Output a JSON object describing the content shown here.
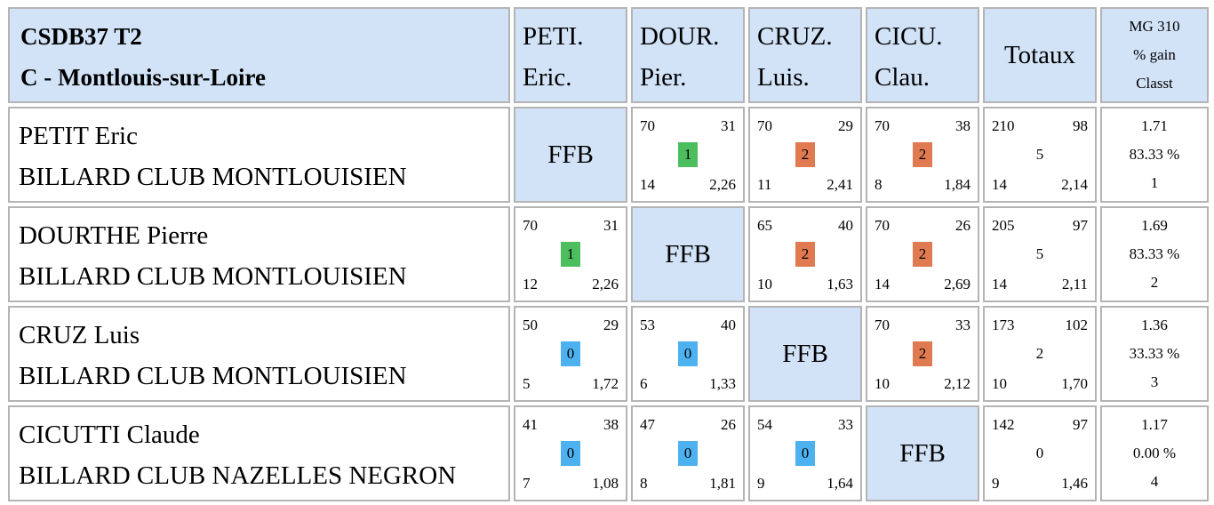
{
  "header": {
    "title_line1": "CSDB37 T2",
    "title_line2": "C - Montlouis-sur-Loire",
    "players": [
      {
        "line1": "PETI.",
        "line2": "Eric."
      },
      {
        "line1": "DOUR.",
        "line2": "Pier."
      },
      {
        "line1": "CRUZ.",
        "line2": "Luis."
      },
      {
        "line1": "CICU.",
        "line2": "Clau."
      }
    ],
    "totals_label": "Totaux",
    "mg_line1": "MG 310",
    "mg_line2": "% gain",
    "mg_line3": "Classt"
  },
  "ffb_label": "FFB",
  "rows": [
    {
      "name": "PETIT Eric",
      "club": "BILLARD CLUB MONTLOUISIEN",
      "cells": [
        null,
        {
          "tl": "70",
          "tr": "31",
          "mid": "1",
          "bl": "14",
          "br": "2,26"
        },
        {
          "tl": "70",
          "tr": "29",
          "mid": "2",
          "bl": "11",
          "br": "2,41"
        },
        {
          "tl": "70",
          "tr": "38",
          "mid": "2",
          "bl": "8",
          "br": "1,84"
        }
      ],
      "totals": {
        "tl": "210",
        "tr": "98",
        "mid": "5",
        "bl": "14",
        "br": "2,14"
      },
      "stats": {
        "mg": "1.71",
        "pct": "83.33 %",
        "rank": "1"
      }
    },
    {
      "name": "DOURTHE Pierre",
      "club": "BILLARD CLUB MONTLOUISIEN",
      "cells": [
        {
          "tl": "70",
          "tr": "31",
          "mid": "1",
          "bl": "12",
          "br": "2,26"
        },
        null,
        {
          "tl": "65",
          "tr": "40",
          "mid": "2",
          "bl": "10",
          "br": "1,63"
        },
        {
          "tl": "70",
          "tr": "26",
          "mid": "2",
          "bl": "14",
          "br": "2,69"
        }
      ],
      "totals": {
        "tl": "205",
        "tr": "97",
        "mid": "5",
        "bl": "14",
        "br": "2,11"
      },
      "stats": {
        "mg": "1.69",
        "pct": "83.33 %",
        "rank": "2"
      }
    },
    {
      "name": "CRUZ Luis",
      "club": "BILLARD CLUB MONTLOUISIEN",
      "cells": [
        {
          "tl": "50",
          "tr": "29",
          "mid": "0",
          "bl": "5",
          "br": "1,72"
        },
        {
          "tl": "53",
          "tr": "40",
          "mid": "0",
          "bl": "6",
          "br": "1,33"
        },
        null,
        {
          "tl": "70",
          "tr": "33",
          "mid": "2",
          "bl": "10",
          "br": "2,12"
        }
      ],
      "totals": {
        "tl": "173",
        "tr": "102",
        "mid": "2",
        "bl": "10",
        "br": "1,70"
      },
      "stats": {
        "mg": "1.36",
        "pct": "33.33 %",
        "rank": "3"
      }
    },
    {
      "name": "CICUTTI Claude",
      "club": "BILLARD CLUB NAZELLES NEGRON",
      "cells": [
        {
          "tl": "41",
          "tr": "38",
          "mid": "0",
          "bl": "7",
          "br": "1,08"
        },
        {
          "tl": "47",
          "tr": "26",
          "mid": "0",
          "bl": "8",
          "br": "1,81"
        },
        {
          "tl": "54",
          "tr": "33",
          "mid": "0",
          "bl": "9",
          "br": "1,64"
        },
        null
      ],
      "totals": {
        "tl": "142",
        "tr": "97",
        "mid": "0",
        "bl": "9",
        "br": "1,46"
      },
      "stats": {
        "mg": "1.17",
        "pct": "0.00 %",
        "rank": "4"
      }
    }
  ],
  "colors": {
    "header_bg": "#d2e3f8",
    "win_badge": "#4dbe5e",
    "draw_badge": "#4db1ef",
    "loss_badge": "#e07a50"
  }
}
